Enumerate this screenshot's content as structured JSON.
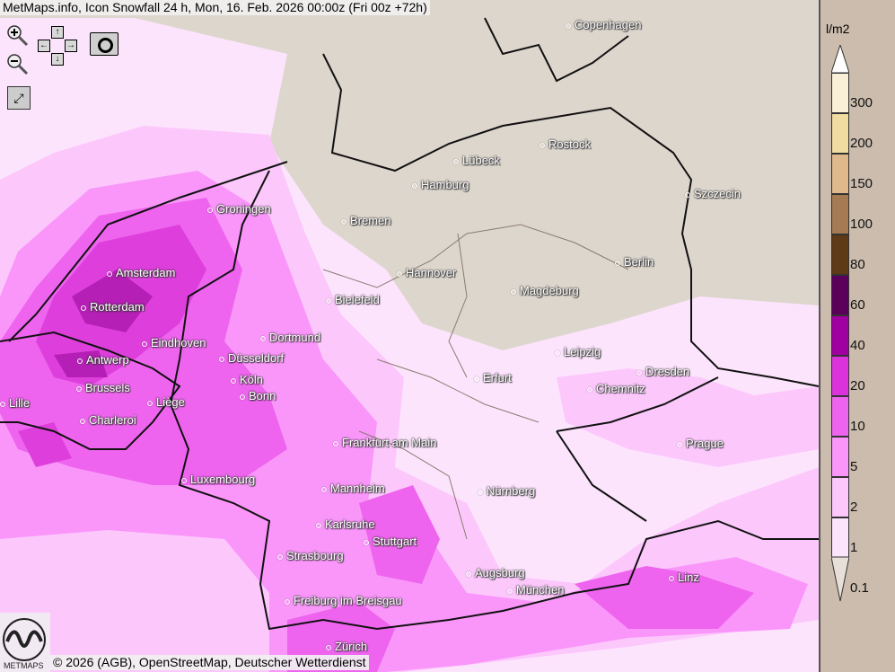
{
  "title": "MetMaps.info, Icon Snowfall 24 h, Mon, 16. Feb. 2026 00:00z (Fri 00z +72h)",
  "copyright": "© 2026 (AGB), OpenStreetMap, Deutscher Wetterdienst",
  "logo_text": "METMAPS",
  "controls": {
    "zoom_in": "zoom-in-icon",
    "zoom_out": "zoom-out-icon",
    "pan_up": "↑",
    "pan_down": "↓",
    "pan_left": "←",
    "pan_right": "→",
    "screenshot": "camera-icon",
    "fullscreen": "fullscreen-icon"
  },
  "legend": {
    "unit": "l/m2",
    "levels": [
      {
        "label": "300",
        "color": "#faf0d8"
      },
      {
        "label": "200",
        "color": "#f0dca0"
      },
      {
        "label": "150",
        "color": "#dfb88c"
      },
      {
        "label": "100",
        "color": "#a67a52"
      },
      {
        "label": "80",
        "color": "#5e3a16"
      },
      {
        "label": "60",
        "color": "#5a005a"
      },
      {
        "label": "40",
        "color": "#a000a0"
      },
      {
        "label": "20",
        "color": "#dc32dc"
      },
      {
        "label": "10",
        "color": "#ee64ee"
      },
      {
        "label": "5",
        "color": "#fa96fa"
      },
      {
        "label": "2",
        "color": "#fcc8fc"
      },
      {
        "label": "1",
        "color": "#fde4fd"
      },
      {
        "label": "0.1",
        "color": ""
      }
    ]
  },
  "cities": [
    "Copenhagen",
    "Rostock",
    "Lübeck",
    "Hamburg",
    "Szczecin",
    "Groningen",
    "Bremen",
    "Amsterdam",
    "Hannover",
    "Berlin",
    "Bielefeld",
    "Magdeburg",
    "Rotterdam",
    "Eindhoven",
    "Dortmund",
    "Leipzig",
    "Antwerp",
    "Düsseldorf",
    "Dresden",
    "Erfurt",
    "Köln",
    "Chemnitz",
    "Brussels",
    "Bonn",
    "Liège",
    "Lille",
    "Charleroi",
    "Prague",
    "Frankfurt am Main",
    "Luxembourg",
    "Mannheim",
    "Nürnberg",
    "Karlsruhe",
    "Stuttgart",
    "Strasbourg",
    "Augsburg",
    "Linz",
    "München",
    "Freiburg im Breisgau",
    "Zürich"
  ]
}
